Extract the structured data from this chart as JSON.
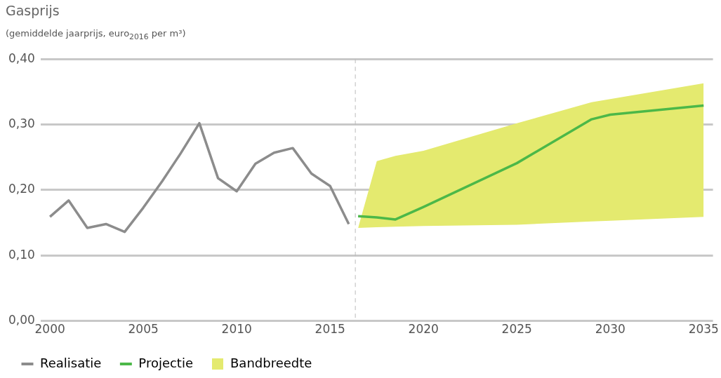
{
  "chart_data": {
    "type": "line",
    "title": "Gasprijs",
    "subtitle": "(gemiddelde jaarprijs, euro$_{2016}$ per m³)",
    "series": [
      {
        "name": "Realisatie",
        "color": "#8c8c8c",
        "x": [
          2000,
          2001,
          2002,
          2003,
          2004,
          2005,
          2006,
          2007,
          2008,
          2009,
          2010,
          2011,
          2012,
          2013,
          2014,
          2015,
          2016
        ],
        "values": [
          0.159,
          0.184,
          0.142,
          0.148,
          0.136,
          0.173,
          0.213,
          0.256,
          0.302,
          0.218,
          0.198,
          0.24,
          0.257,
          0.264,
          0.225,
          0.206,
          0.148
        ]
      },
      {
        "name": "Projectie",
        "color": "#4cb848",
        "x": [
          2016.5,
          2017.5,
          2018.5,
          2020,
          2025,
          2029,
          2030,
          2035
        ],
        "values": [
          0.16,
          0.158,
          0.155,
          0.174,
          0.241,
          0.308,
          0.315,
          0.329
        ]
      },
      {
        "name": "Bandbreedte",
        "type": "area",
        "color": "#e4ea6f",
        "x": [
          2016.5,
          2017.5,
          2018.5,
          2020,
          2025,
          2029,
          2030,
          2035
        ],
        "values": [
          null,
          null,
          null,
          null,
          null,
          null,
          null,
          null
        ],
        "upper": [
          0.142,
          0.244,
          0.252,
          0.26,
          0.302,
          0.334,
          0.339,
          0.363
        ],
        "lower": [
          0.142,
          0.143,
          0.144,
          0.145,
          0.147,
          0.152,
          0.153,
          0.159
        ]
      }
    ],
    "xlim": [
      1999.5,
      2035.5
    ],
    "xticks": [
      2000,
      2005,
      2010,
      2015,
      2020,
      2025,
      2030,
      2035
    ],
    "ylim": [
      0,
      0.4
    ],
    "yticks": [
      {
        "value": 0,
        "label": "0,00"
      },
      {
        "value": 0.1,
        "label": "0,10"
      },
      {
        "value": 0.2,
        "label": "0,20"
      },
      {
        "value": 0.3,
        "label": "0,30"
      },
      {
        "value": 0.4,
        "label": "0,40"
      }
    ],
    "ref_lines": [
      {
        "axis": "x",
        "value": 2016.35,
        "color": "#bbbbbb",
        "line_style": "dashed"
      }
    ],
    "grid": "y",
    "legend": "bottom left",
    "marker": "none",
    "line_style": "solid"
  }
}
